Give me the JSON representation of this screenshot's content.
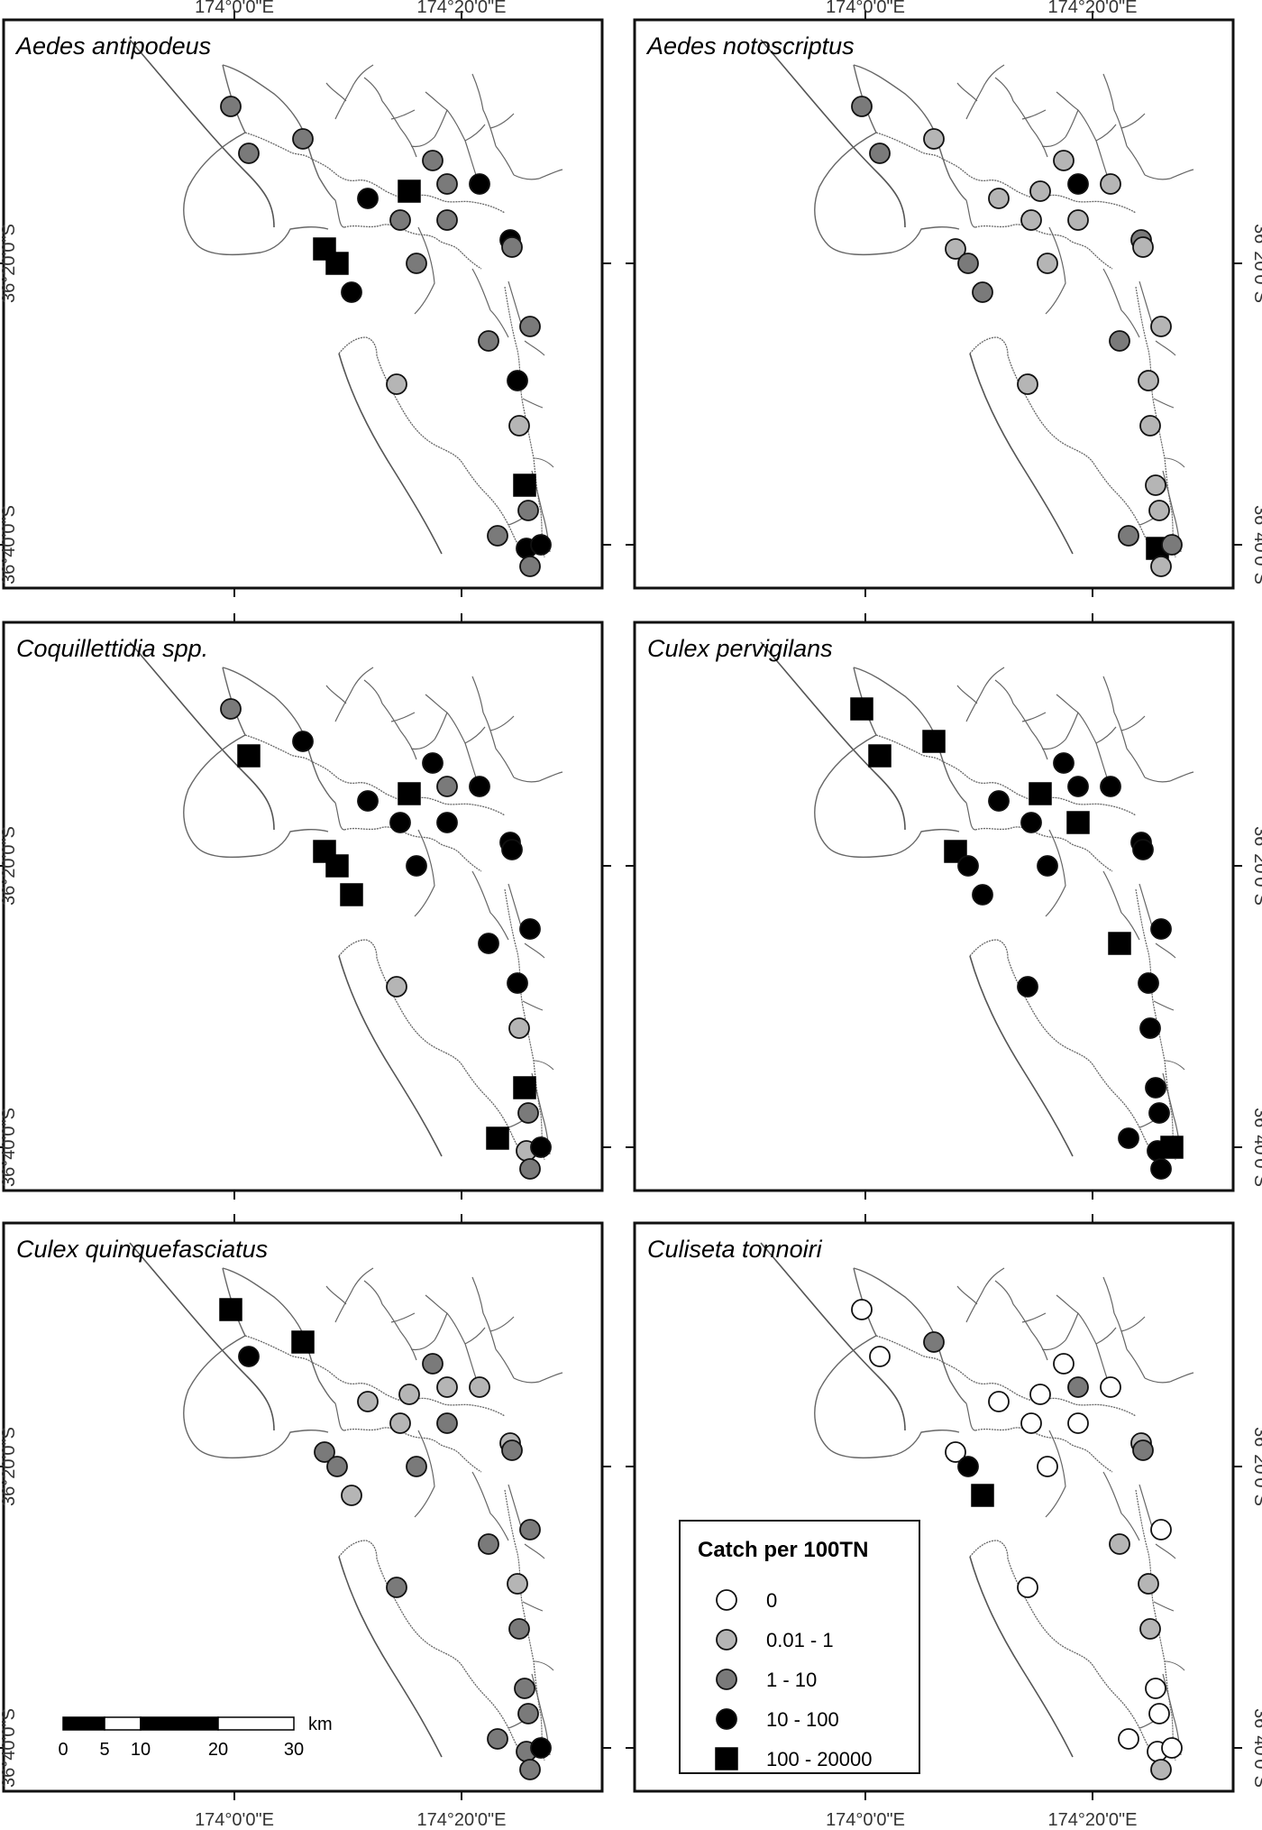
{
  "axis_labels": {
    "lon_a": "174°0'0\"E",
    "lon_b": "174°20'0\"E",
    "lat_a": "36°20'0\"S",
    "lat_b": "36°40'0\"S"
  },
  "legend": {
    "title": "Catch per 100TN",
    "classes": [
      {
        "label": "0",
        "shape": "circle",
        "fill": "#ffffff"
      },
      {
        "label": "0.01 - 1",
        "shape": "circle",
        "fill": "#b5b5b5"
      },
      {
        "label": "1 - 10",
        "shape": "circle",
        "fill": "#7a7a7a"
      },
      {
        "label": "10 - 100",
        "shape": "circle",
        "fill": "#000000"
      },
      {
        "label": "100 - 20000",
        "shape": "square",
        "fill": "#000000"
      }
    ]
  },
  "scale_bar": {
    "unit": "km",
    "ticks": [
      "0",
      "5",
      "10",
      "20",
      "30"
    ]
  },
  "panels": [
    {
      "title": "Aedes antipodeus",
      "classes": [
        2,
        2,
        2,
        3,
        4,
        2,
        2,
        2,
        3,
        2,
        2,
        4,
        4,
        3,
        3,
        2,
        2,
        2,
        3,
        1,
        4,
        2,
        2,
        3,
        2,
        3,
        1
      ]
    },
    {
      "title": "Aedes notoscriptus",
      "classes": [
        2,
        2,
        1,
        1,
        1,
        1,
        1,
        3,
        1,
        1,
        1,
        1,
        2,
        2,
        2,
        1,
        2,
        1,
        1,
        1,
        1,
        1,
        2,
        4,
        1,
        2,
        1
      ]
    },
    {
      "title": "Coquillettidia spp.",
      "classes": [
        2,
        4,
        3,
        3,
        4,
        3,
        3,
        2,
        3,
        3,
        3,
        4,
        4,
        4,
        3,
        3,
        3,
        3,
        3,
        1,
        4,
        2,
        4,
        1,
        2,
        3,
        1
      ]
    },
    {
      "title": "Culex pervigilans",
      "classes": [
        4,
        4,
        4,
        3,
        4,
        3,
        3,
        3,
        3,
        4,
        3,
        4,
        3,
        3,
        3,
        3,
        4,
        3,
        3,
        3,
        3,
        3,
        3,
        3,
        3,
        4,
        3
      ]
    },
    {
      "title": "Culex quinquefasciatus",
      "classes": [
        4,
        3,
        4,
        1,
        1,
        1,
        2,
        1,
        1,
        2,
        2,
        2,
        2,
        1,
        1,
        2,
        2,
        2,
        1,
        2,
        2,
        2,
        2,
        2,
        2,
        3,
        2
      ]
    },
    {
      "title": "Culiseta tonnoiri",
      "classes": [
        0,
        0,
        2,
        0,
        0,
        0,
        0,
        2,
        0,
        0,
        0,
        0,
        3,
        4,
        1,
        2,
        1,
        0,
        1,
        1,
        0,
        0,
        0,
        0,
        1,
        0,
        0
      ]
    }
  ]
}
